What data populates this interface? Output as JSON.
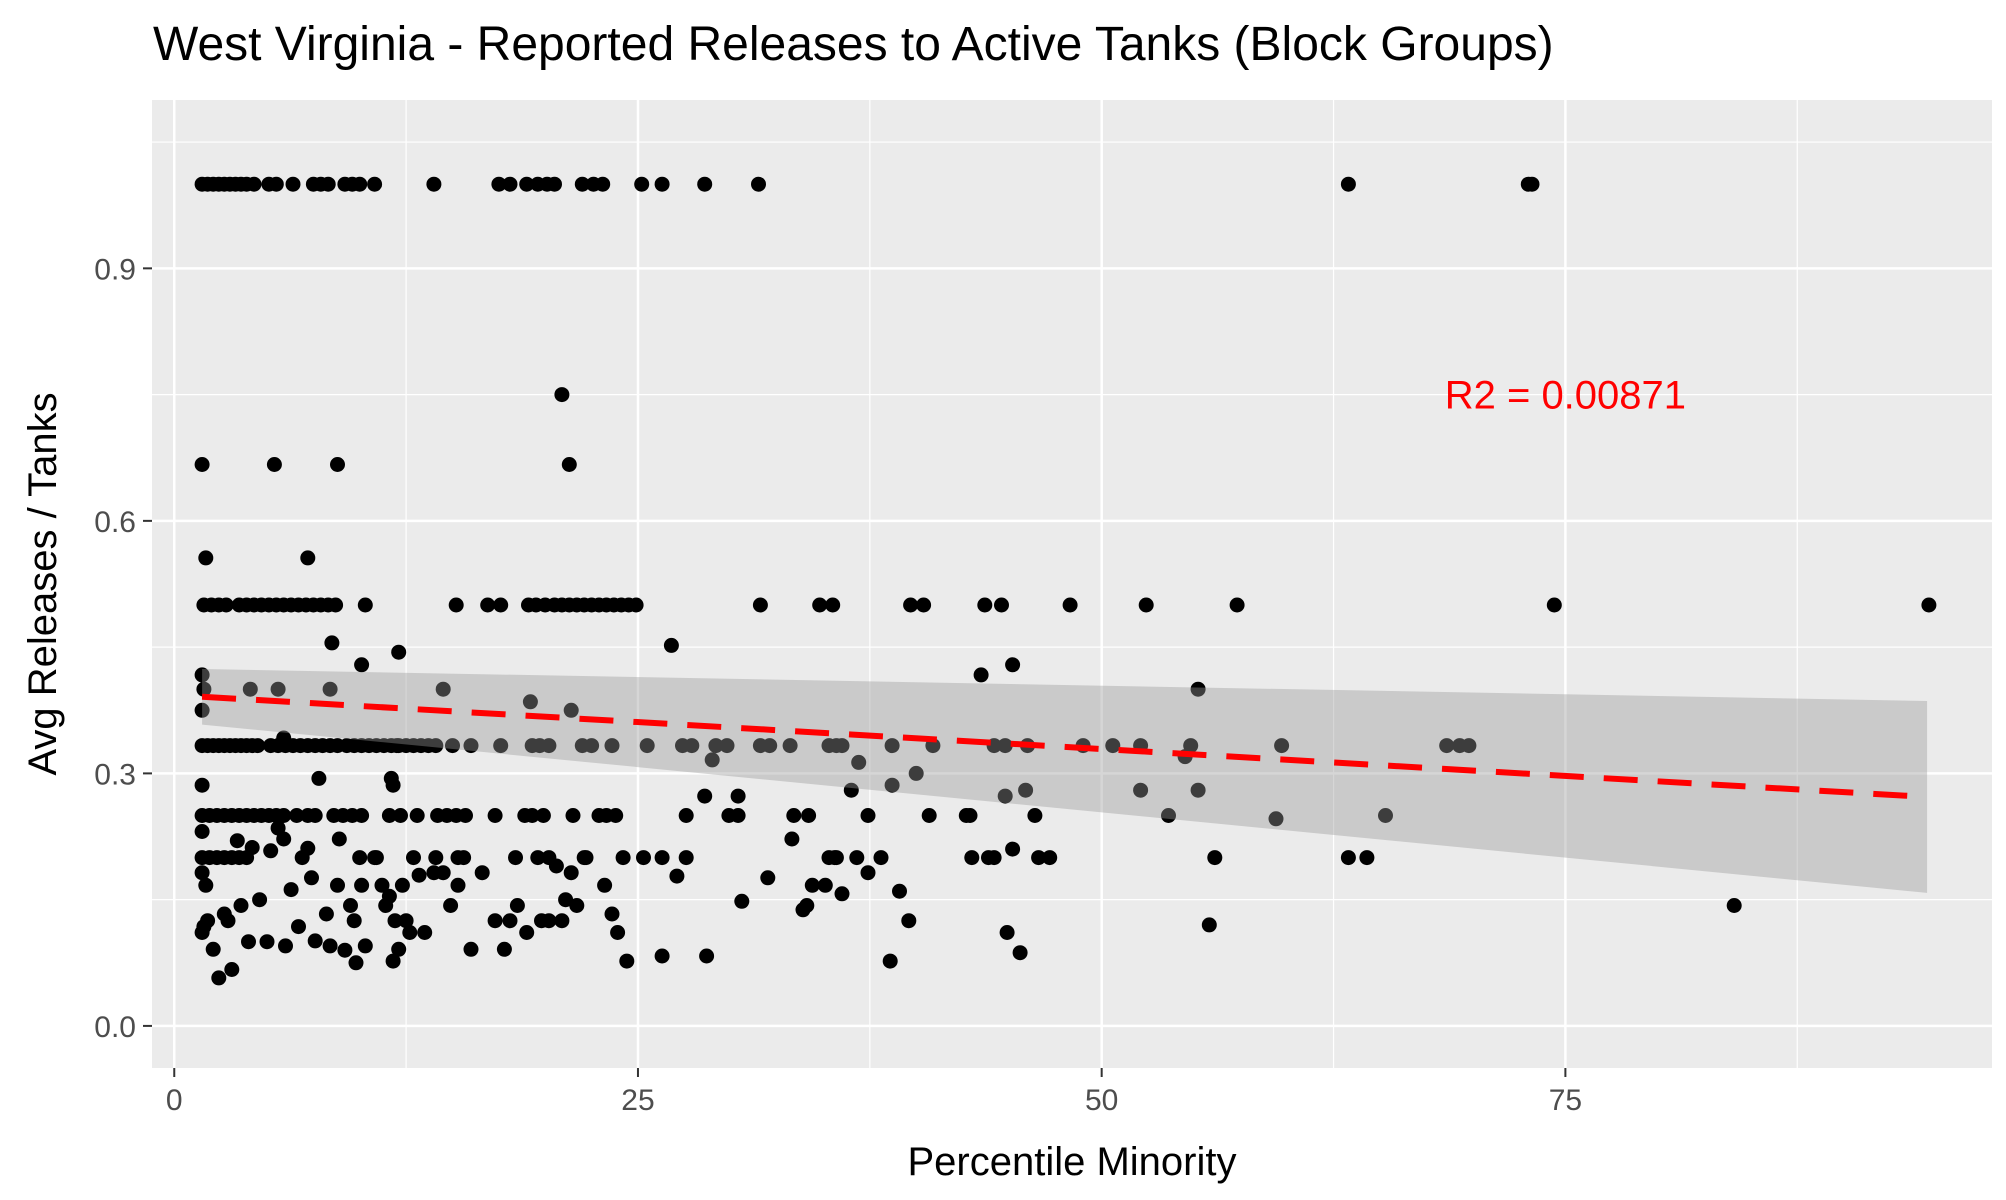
{
  "chart_data": {
    "type": "scatter",
    "title": "West Virginia - Reported Releases to Active Tanks (Block Groups)",
    "xlabel": "Percentile Minority",
    "ylabel": "Avg Releases / Tanks",
    "xlim": [
      -1.2,
      98
    ],
    "ylim": [
      -0.05,
      1.1
    ],
    "x_ticks": [
      0,
      25,
      50,
      75
    ],
    "x_tick_labels": [
      "0",
      "25",
      "50",
      "75"
    ],
    "y_ticks": [
      0.0,
      0.3,
      0.6,
      0.9
    ],
    "y_tick_labels": [
      "0.0",
      "0.3",
      "0.6",
      "0.9"
    ],
    "grid": true,
    "panel_background": "#ebebeb",
    "point_color": "#000000",
    "annotation": {
      "text": "R2 =  0.00871",
      "x": 75,
      "y": 0.75,
      "color": "#ff0000"
    },
    "fit_line": {
      "style": "dashed",
      "color": "#ff0000",
      "x": [
        1.5,
        94.5
      ],
      "y": [
        0.391,
        0.272
      ],
      "ci_lower": [
        0.358,
        0.158
      ],
      "ci_upper": [
        0.424,
        0.386
      ],
      "ci_color": "#c8c8c8"
    },
    "points": [
      [
        1.5,
        1.0
      ],
      [
        1.8,
        1.0
      ],
      [
        2.1,
        1.0
      ],
      [
        2.4,
        1.0
      ],
      [
        2.7,
        1.0
      ],
      [
        3.0,
        1.0
      ],
      [
        3.3,
        1.0
      ],
      [
        3.6,
        1.0
      ],
      [
        3.9,
        1.0
      ],
      [
        4.3,
        1.0
      ],
      [
        5.1,
        1.0
      ],
      [
        5.5,
        1.0
      ],
      [
        6.4,
        1.0
      ],
      [
        7.5,
        1.0
      ],
      [
        7.9,
        1.0
      ],
      [
        8.3,
        1.0
      ],
      [
        9.2,
        1.0
      ],
      [
        9.6,
        1.0
      ],
      [
        10.0,
        1.0
      ],
      [
        10.8,
        1.0
      ],
      [
        14.0,
        1.0
      ],
      [
        17.5,
        1.0
      ],
      [
        18.1,
        1.0
      ],
      [
        19.0,
        1.0
      ],
      [
        19.6,
        1.0
      ],
      [
        20.1,
        1.0
      ],
      [
        20.5,
        1.0
      ],
      [
        22.0,
        1.0
      ],
      [
        22.6,
        1.0
      ],
      [
        23.1,
        1.0
      ],
      [
        25.2,
        1.0
      ],
      [
        26.3,
        1.0
      ],
      [
        28.6,
        1.0
      ],
      [
        31.5,
        1.0
      ],
      [
        63.3,
        1.0
      ],
      [
        73.0,
        1.0
      ],
      [
        73.2,
        1.0
      ],
      [
        20.9,
        0.75
      ],
      [
        1.5,
        0.667
      ],
      [
        5.4,
        0.667
      ],
      [
        8.8,
        0.667
      ],
      [
        21.3,
        0.667
      ],
      [
        1.7,
        0.556
      ],
      [
        7.2,
        0.556
      ],
      [
        1.6,
        0.5
      ],
      [
        2.0,
        0.5
      ],
      [
        2.4,
        0.5
      ],
      [
        2.8,
        0.5
      ],
      [
        3.5,
        0.5
      ],
      [
        3.9,
        0.5
      ],
      [
        4.3,
        0.5
      ],
      [
        4.7,
        0.5
      ],
      [
        5.1,
        0.5
      ],
      [
        5.5,
        0.5
      ],
      [
        5.9,
        0.5
      ],
      [
        6.3,
        0.5
      ],
      [
        6.7,
        0.5
      ],
      [
        7.1,
        0.5
      ],
      [
        7.5,
        0.5
      ],
      [
        7.9,
        0.5
      ],
      [
        8.3,
        0.5
      ],
      [
        8.7,
        0.5
      ],
      [
        10.3,
        0.5
      ],
      [
        15.2,
        0.5
      ],
      [
        16.9,
        0.5
      ],
      [
        17.6,
        0.5
      ],
      [
        19.1,
        0.5
      ],
      [
        19.5,
        0.5
      ],
      [
        20.0,
        0.5
      ],
      [
        20.5,
        0.5
      ],
      [
        20.9,
        0.5
      ],
      [
        21.3,
        0.5
      ],
      [
        21.7,
        0.5
      ],
      [
        22.1,
        0.5
      ],
      [
        22.5,
        0.5
      ],
      [
        22.9,
        0.5
      ],
      [
        23.3,
        0.5
      ],
      [
        23.7,
        0.5
      ],
      [
        24.1,
        0.5
      ],
      [
        24.5,
        0.5
      ],
      [
        24.9,
        0.5
      ],
      [
        31.6,
        0.5
      ],
      [
        34.8,
        0.5
      ],
      [
        35.5,
        0.5
      ],
      [
        39.7,
        0.5
      ],
      [
        40.4,
        0.5
      ],
      [
        43.7,
        0.5
      ],
      [
        44.6,
        0.5
      ],
      [
        48.3,
        0.5
      ],
      [
        52.4,
        0.5
      ],
      [
        57.3,
        0.5
      ],
      [
        74.4,
        0.5
      ],
      [
        94.6,
        0.5
      ],
      [
        8.5,
        0.455
      ],
      [
        12.1,
        0.444
      ],
      [
        26.8,
        0.452
      ],
      [
        43.5,
        0.417
      ],
      [
        45.2,
        0.429
      ],
      [
        1.5,
        0.417
      ],
      [
        1.6,
        0.4
      ],
      [
        4.1,
        0.4
      ],
      [
        5.6,
        0.4
      ],
      [
        8.4,
        0.4
      ],
      [
        14.5,
        0.4
      ],
      [
        55.2,
        0.4
      ],
      [
        1.5,
        0.375
      ],
      [
        21.4,
        0.375
      ],
      [
        19.2,
        0.385
      ],
      [
        10.1,
        0.429
      ],
      [
        1.5,
        0.333
      ],
      [
        1.8,
        0.333
      ],
      [
        2.1,
        0.333
      ],
      [
        2.4,
        0.333
      ],
      [
        2.7,
        0.333
      ],
      [
        3.0,
        0.333
      ],
      [
        3.3,
        0.333
      ],
      [
        3.6,
        0.333
      ],
      [
        3.9,
        0.333
      ],
      [
        4.2,
        0.333
      ],
      [
        4.5,
        0.333
      ],
      [
        5.2,
        0.333
      ],
      [
        5.6,
        0.333
      ],
      [
        6.0,
        0.333
      ],
      [
        6.4,
        0.333
      ],
      [
        6.8,
        0.333
      ],
      [
        7.2,
        0.333
      ],
      [
        7.6,
        0.333
      ],
      [
        8.0,
        0.333
      ],
      [
        8.4,
        0.333
      ],
      [
        8.8,
        0.333
      ],
      [
        9.3,
        0.333
      ],
      [
        9.7,
        0.333
      ],
      [
        10.1,
        0.333
      ],
      [
        10.5,
        0.333
      ],
      [
        10.9,
        0.333
      ],
      [
        11.3,
        0.333
      ],
      [
        11.7,
        0.333
      ],
      [
        12.1,
        0.333
      ],
      [
        12.5,
        0.333
      ],
      [
        12.9,
        0.333
      ],
      [
        13.3,
        0.333
      ],
      [
        13.7,
        0.333
      ],
      [
        14.1,
        0.333
      ],
      [
        15.0,
        0.333
      ],
      [
        16.0,
        0.333
      ],
      [
        17.6,
        0.333
      ],
      [
        19.3,
        0.333
      ],
      [
        19.7,
        0.333
      ],
      [
        20.2,
        0.333
      ],
      [
        22.0,
        0.333
      ],
      [
        22.5,
        0.333
      ],
      [
        23.6,
        0.333
      ],
      [
        25.5,
        0.333
      ],
      [
        27.4,
        0.333
      ],
      [
        27.9,
        0.333
      ],
      [
        29.2,
        0.333
      ],
      [
        29.8,
        0.333
      ],
      [
        31.6,
        0.333
      ],
      [
        32.1,
        0.333
      ],
      [
        33.2,
        0.333
      ],
      [
        35.3,
        0.333
      ],
      [
        35.7,
        0.333
      ],
      [
        36.0,
        0.333
      ],
      [
        38.7,
        0.333
      ],
      [
        40.9,
        0.333
      ],
      [
        44.2,
        0.333
      ],
      [
        44.8,
        0.333
      ],
      [
        46.0,
        0.333
      ],
      [
        49.0,
        0.333
      ],
      [
        50.6,
        0.333
      ],
      [
        52.1,
        0.333
      ],
      [
        54.8,
        0.333
      ],
      [
        59.7,
        0.333
      ],
      [
        68.6,
        0.333
      ],
      [
        69.3,
        0.333
      ],
      [
        69.8,
        0.333
      ],
      [
        5.9,
        0.342
      ],
      [
        11.7,
        0.294
      ],
      [
        11.8,
        0.286
      ],
      [
        7.8,
        0.294
      ],
      [
        29.0,
        0.316
      ],
      [
        36.9,
        0.313
      ],
      [
        40.0,
        0.3
      ],
      [
        54.5,
        0.32
      ],
      [
        1.5,
        0.286
      ],
      [
        52.1,
        0.28
      ],
      [
        55.2,
        0.28
      ],
      [
        36.5,
        0.28
      ],
      [
        38.7,
        0.286
      ],
      [
        44.8,
        0.273
      ],
      [
        46.4,
        0.25
      ],
      [
        45.9,
        0.28
      ],
      [
        28.6,
        0.273
      ],
      [
        30.4,
        0.273
      ],
      [
        12.0,
        0.333
      ],
      [
        1.5,
        0.25
      ],
      [
        1.9,
        0.25
      ],
      [
        2.3,
        0.25
      ],
      [
        2.7,
        0.25
      ],
      [
        3.1,
        0.25
      ],
      [
        3.5,
        0.25
      ],
      [
        3.9,
        0.25
      ],
      [
        4.3,
        0.25
      ],
      [
        4.7,
        0.25
      ],
      [
        5.1,
        0.25
      ],
      [
        5.5,
        0.25
      ],
      [
        5.9,
        0.25
      ],
      [
        6.6,
        0.25
      ],
      [
        7.2,
        0.25
      ],
      [
        7.6,
        0.25
      ],
      [
        8.6,
        0.25
      ],
      [
        9.1,
        0.25
      ],
      [
        9.6,
        0.25
      ],
      [
        10.1,
        0.25
      ],
      [
        11.6,
        0.25
      ],
      [
        12.2,
        0.25
      ],
      [
        13.1,
        0.25
      ],
      [
        14.2,
        0.25
      ],
      [
        14.7,
        0.25
      ],
      [
        15.2,
        0.25
      ],
      [
        15.7,
        0.25
      ],
      [
        17.3,
        0.25
      ],
      [
        18.9,
        0.25
      ],
      [
        19.3,
        0.25
      ],
      [
        19.9,
        0.25
      ],
      [
        21.5,
        0.25
      ],
      [
        22.9,
        0.25
      ],
      [
        23.3,
        0.25
      ],
      [
        23.8,
        0.25
      ],
      [
        27.6,
        0.25
      ],
      [
        29.9,
        0.25
      ],
      [
        30.4,
        0.25
      ],
      [
        33.4,
        0.25
      ],
      [
        34.2,
        0.25
      ],
      [
        37.4,
        0.25
      ],
      [
        40.7,
        0.25
      ],
      [
        42.9,
        0.25
      ],
      [
        53.6,
        0.25
      ],
      [
        65.3,
        0.25
      ],
      [
        1.5,
        0.2
      ],
      [
        1.9,
        0.2
      ],
      [
        2.3,
        0.2
      ],
      [
        2.7,
        0.2
      ],
      [
        3.1,
        0.2
      ],
      [
        3.5,
        0.2
      ],
      [
        3.9,
        0.2
      ],
      [
        10.9,
        0.2
      ],
      [
        14.1,
        0.2
      ],
      [
        15.3,
        0.2
      ],
      [
        18.4,
        0.2
      ],
      [
        19.6,
        0.2
      ],
      [
        20.2,
        0.2
      ],
      [
        22.2,
        0.2
      ],
      [
        24.2,
        0.2
      ],
      [
        26.3,
        0.2
      ],
      [
        27.6,
        0.2
      ],
      [
        35.3,
        0.2
      ],
      [
        35.7,
        0.2
      ],
      [
        38.1,
        0.2
      ],
      [
        43.0,
        0.2
      ],
      [
        43.9,
        0.2
      ],
      [
        46.6,
        0.2
      ],
      [
        47.2,
        0.2
      ],
      [
        56.1,
        0.2
      ],
      [
        63.3,
        0.2
      ],
      [
        1.5,
        0.231
      ],
      [
        1.5,
        0.182
      ],
      [
        1.7,
        0.167
      ],
      [
        1.8,
        0.125
      ],
      [
        1.5,
        0.111
      ],
      [
        1.6,
        0.118
      ],
      [
        2.1,
        0.091
      ],
      [
        2.4,
        0.057
      ],
      [
        2.7,
        0.133
      ],
      [
        2.9,
        0.125
      ],
      [
        3.1,
        0.067
      ],
      [
        3.4,
        0.22
      ],
      [
        3.6,
        0.143
      ],
      [
        4.0,
        0.1
      ],
      [
        4.2,
        0.212
      ],
      [
        4.6,
        0.15
      ],
      [
        5.0,
        0.1
      ],
      [
        5.2,
        0.208
      ],
      [
        5.6,
        0.235
      ],
      [
        5.9,
        0.222
      ],
      [
        6.0,
        0.095
      ],
      [
        6.3,
        0.162
      ],
      [
        6.7,
        0.118
      ],
      [
        6.9,
        0.2
      ],
      [
        7.2,
        0.211
      ],
      [
        7.4,
        0.176
      ],
      [
        7.6,
        0.101
      ],
      [
        8.2,
        0.133
      ],
      [
        8.4,
        0.095
      ],
      [
        8.8,
        0.167
      ],
      [
        8.9,
        0.222
      ],
      [
        9.2,
        0.09
      ],
      [
        9.5,
        0.143
      ],
      [
        9.7,
        0.125
      ],
      [
        9.8,
        0.075
      ],
      [
        10.0,
        0.2
      ],
      [
        10.1,
        0.167
      ],
      [
        10.3,
        0.095
      ],
      [
        10.8,
        0.2
      ],
      [
        11.2,
        0.167
      ],
      [
        11.4,
        0.143
      ],
      [
        11.6,
        0.154
      ],
      [
        11.8,
        0.077
      ],
      [
        11.9,
        0.125
      ],
      [
        12.1,
        0.091
      ],
      [
        12.3,
        0.167
      ],
      [
        12.5,
        0.125
      ],
      [
        12.7,
        0.111
      ],
      [
        12.9,
        0.2
      ],
      [
        13.2,
        0.179
      ],
      [
        13.5,
        0.111
      ],
      [
        14.0,
        0.182
      ],
      [
        14.5,
        0.182
      ],
      [
        14.9,
        0.143
      ],
      [
        15.3,
        0.167
      ],
      [
        15.6,
        0.2
      ],
      [
        16.0,
        0.091
      ],
      [
        16.6,
        0.182
      ],
      [
        17.3,
        0.125
      ],
      [
        17.8,
        0.091
      ],
      [
        18.1,
        0.125
      ],
      [
        18.5,
        0.143
      ],
      [
        19.0,
        0.111
      ],
      [
        19.8,
        0.125
      ],
      [
        20.2,
        0.125
      ],
      [
        20.6,
        0.19
      ],
      [
        20.9,
        0.125
      ],
      [
        21.1,
        0.15
      ],
      [
        21.4,
        0.182
      ],
      [
        21.7,
        0.143
      ],
      [
        22.1,
        0.2
      ],
      [
        23.2,
        0.167
      ],
      [
        23.6,
        0.133
      ],
      [
        23.9,
        0.111
      ],
      [
        24.4,
        0.077
      ],
      [
        25.3,
        0.2
      ],
      [
        26.3,
        0.083
      ],
      [
        27.1,
        0.178
      ],
      [
        28.7,
        0.083
      ],
      [
        30.6,
        0.148
      ],
      [
        32.0,
        0.176
      ],
      [
        33.3,
        0.222
      ],
      [
        33.9,
        0.138
      ],
      [
        34.1,
        0.143
      ],
      [
        34.4,
        0.167
      ],
      [
        35.1,
        0.167
      ],
      [
        35.6,
        0.2
      ],
      [
        36.0,
        0.157
      ],
      [
        36.8,
        0.2
      ],
      [
        37.4,
        0.182
      ],
      [
        38.6,
        0.077
      ],
      [
        39.1,
        0.16
      ],
      [
        39.6,
        0.125
      ],
      [
        42.7,
        0.25
      ],
      [
        44.2,
        0.2
      ],
      [
        44.9,
        0.111
      ],
      [
        45.6,
        0.087
      ],
      [
        45.2,
        0.21
      ],
      [
        55.8,
        0.12
      ],
      [
        59.4,
        0.246
      ],
      [
        64.3,
        0.2
      ],
      [
        84.1,
        0.143
      ]
    ]
  }
}
